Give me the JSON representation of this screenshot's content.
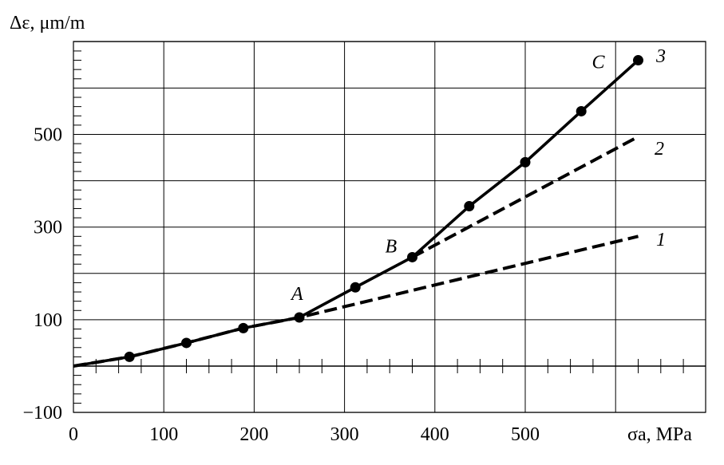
{
  "chart_data": {
    "type": "line",
    "xlabel": "σa, MPa",
    "ylabel": "Δε, μm/m",
    "xlim": [
      0,
      700
    ],
    "ylim": [
      -100,
      700
    ],
    "x_ticks": [
      0,
      100,
      200,
      300,
      400,
      500
    ],
    "y_ticks": [
      -100,
      100,
      300,
      500
    ],
    "grid": true,
    "series": [
      {
        "name": "3",
        "style": "solid-markers",
        "x": [
          0,
          62,
          125,
          188,
          250,
          312,
          375,
          438,
          500,
          562,
          625
        ],
        "y": [
          0,
          20,
          50,
          82,
          105,
          170,
          235,
          345,
          440,
          550,
          660
        ]
      },
      {
        "name": "2",
        "style": "dashed",
        "x": [
          375,
          625
        ],
        "y": [
          235,
          495
        ]
      },
      {
        "name": "1",
        "style": "dashed",
        "x": [
          0,
          62,
          125,
          188,
          250,
          625
        ],
        "y": [
          0,
          20,
          50,
          82,
          105,
          280
        ]
      }
    ],
    "annotations": [
      {
        "text": "A",
        "x": 250,
        "y": 105
      },
      {
        "text": "B",
        "x": 375,
        "y": 235
      },
      {
        "text": "C",
        "x": 625,
        "y": 660
      }
    ]
  }
}
